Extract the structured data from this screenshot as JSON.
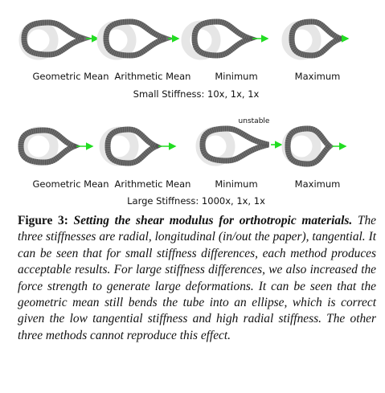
{
  "figure": {
    "rows": [
      {
        "panels": [
          {
            "label": "Geometric Mean"
          },
          {
            "label": "Arithmetic Mean"
          },
          {
            "label": "Minimum"
          },
          {
            "label": "Maximum"
          }
        ],
        "subtitle": "Small Stiffness: 10x, 1x, 1x"
      },
      {
        "panels": [
          {
            "label": "Geometric Mean"
          },
          {
            "label": "Arithmetic Mean"
          },
          {
            "label": "Minimum",
            "annotation": "unstable"
          },
          {
            "label": "Maximum"
          }
        ],
        "subtitle": "Large Stiffness: 1000x, 1x, 1x"
      }
    ],
    "colors": {
      "rest_tube": "#e6e6e6",
      "deformed_tube": "#6e6e6e",
      "mesh_line": "#444444",
      "force_arrow": "#22dd22"
    }
  },
  "caption": {
    "label": "Figure 3:",
    "title": "Setting the shear modulus for orthotropic materials.",
    "text": "The three stiffnesses are radial, longitudinal (in/out the paper), tangential. It can be seen that for small stiffness differences, each method produces acceptable results. For large stiffness differences, we also increased the force strength to generate large deformations. It can be seen that the geometric mean still bends the tube into an ellipse, which is correct given the low tangential stiffness and high radial stiffness. The other three methods cannot reproduce this effect."
  }
}
